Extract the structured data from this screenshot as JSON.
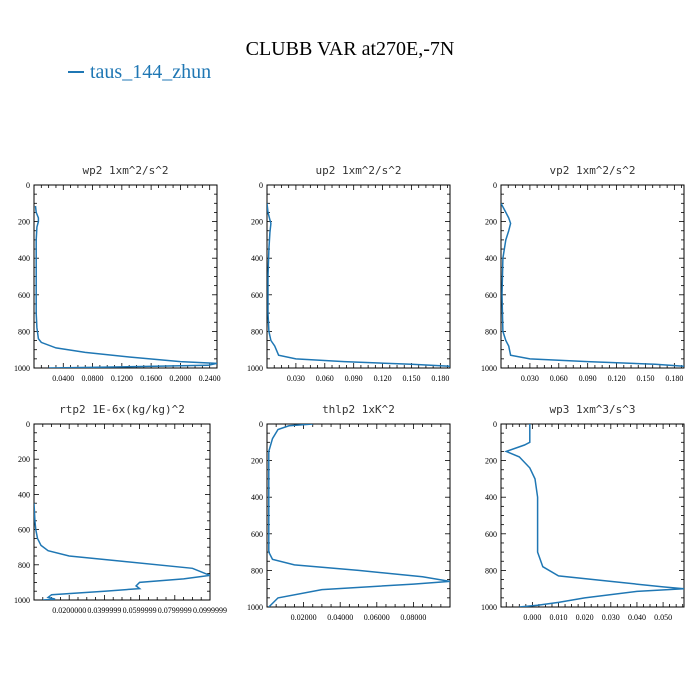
{
  "figure": {
    "title": "CLUBB VAR at270E,-7N",
    "legend": [
      {
        "name": "taus_144_zhun",
        "color": "#1f77b4"
      }
    ]
  },
  "chart_data": [
    {
      "type": "line",
      "title": "wp2   1xm^2/s^2",
      "xlim": [
        0.0,
        0.25
      ],
      "ylim": [
        1000,
        0
      ],
      "xticks": [
        0.04,
        0.08,
        0.12,
        0.16,
        0.2,
        0.24
      ],
      "xtick_labels": [
        "0.0400",
        "0.0800",
        "0.1200",
        "0.1600",
        "0.2000",
        "0.2400"
      ],
      "yticks": [
        0,
        200,
        400,
        600,
        800,
        1000
      ],
      "ytick_labels": [
        "0",
        "200",
        "400",
        "600",
        "800",
        "1000"
      ],
      "series": [
        {
          "name": "taus_144_zhun",
          "color": "#1f77b4",
          "x": [
            0.002,
            0.003,
            0.006,
            0.006,
            0.004,
            0.003,
            0.003,
            0.003,
            0.004,
            0.006,
            0.01,
            0.03,
            0.07,
            0.13,
            0.2,
            0.25,
            0.238,
            0.1,
            0.02
          ],
          "y": [
            115,
            150,
            180,
            200,
            230,
            300,
            500,
            700,
            780,
            840,
            860,
            890,
            915,
            940,
            965,
            975,
            985,
            995,
            1000
          ]
        }
      ]
    },
    {
      "type": "line",
      "title": "up2   1xm^2/s^2",
      "xlim": [
        0.0,
        0.19
      ],
      "ylim": [
        1000,
        0
      ],
      "xticks": [
        0.03,
        0.06,
        0.09,
        0.12,
        0.15,
        0.18
      ],
      "xtick_labels": [
        "0.030",
        "0.060",
        "0.090",
        "0.120",
        "0.150",
        "0.180"
      ],
      "yticks": [
        0,
        200,
        400,
        600,
        800,
        1000
      ],
      "ytick_labels": [
        "0",
        "200",
        "400",
        "600",
        "800",
        "1000"
      ],
      "series": [
        {
          "name": "taus_144_zhun",
          "color": "#1f77b4",
          "x": [
            0.0,
            0.001,
            0.003,
            0.004,
            0.003,
            0.002,
            0.001,
            0.001,
            0.002,
            0.004,
            0.008,
            0.012,
            0.03,
            0.08,
            0.15,
            0.19
          ],
          "y": [
            100,
            150,
            190,
            210,
            260,
            350,
            500,
            700,
            800,
            850,
            880,
            930,
            950,
            965,
            980,
            990
          ]
        }
      ]
    },
    {
      "type": "line",
      "title": "vp2   1xm^2/s^2",
      "xlim": [
        0.0,
        0.19
      ],
      "ylim": [
        1000,
        0
      ],
      "xticks": [
        0.03,
        0.06,
        0.09,
        0.12,
        0.15,
        0.18
      ],
      "xtick_labels": [
        "0.030",
        "0.060",
        "0.090",
        "0.120",
        "0.150",
        "0.180"
      ],
      "yticks": [
        0,
        200,
        400,
        600,
        800,
        1000
      ],
      "ytick_labels": [
        "0",
        "200",
        "400",
        "600",
        "800",
        "1000"
      ],
      "series": [
        {
          "name": "taus_144_zhun",
          "color": "#1f77b4",
          "x": [
            0.0,
            0.004,
            0.008,
            0.01,
            0.008,
            0.005,
            0.002,
            0.001,
            0.002,
            0.005,
            0.008,
            0.01,
            0.03,
            0.09,
            0.16,
            0.19
          ],
          "y": [
            100,
            140,
            180,
            210,
            250,
            300,
            400,
            600,
            800,
            850,
            880,
            930,
            950,
            965,
            980,
            990
          ]
        }
      ]
    },
    {
      "type": "line",
      "title": "rtp2   1E-6x(kg/kg)^2",
      "xlim": [
        0.0,
        0.1
      ],
      "ylim": [
        1000,
        0
      ],
      "xticks": [
        0.02,
        0.04,
        0.06,
        0.08,
        0.1
      ],
      "xtick_labels": [
        "0.0200000",
        "0.0399999",
        "0.0599999",
        "0.0799999",
        "0.0999999"
      ],
      "yticks": [
        0,
        200,
        400,
        600,
        800,
        1000
      ],
      "ytick_labels": [
        "0",
        "200",
        "400",
        "600",
        "800",
        "1000"
      ],
      "series": [
        {
          "name": "taus_144_zhun",
          "color": "#1f77b4",
          "x": [
            0.0,
            0.0005,
            0.001,
            0.002,
            0.004,
            0.008,
            0.02,
            0.05,
            0.09,
            0.1,
            0.085,
            0.06,
            0.058,
            0.06,
            0.04,
            0.01,
            0.008,
            0.012,
            0.005
          ],
          "y": [
            450,
            550,
            600,
            650,
            690,
            720,
            750,
            780,
            820,
            860,
            880,
            900,
            920,
            935,
            950,
            970,
            985,
            995,
            1000
          ]
        }
      ]
    },
    {
      "type": "line",
      "title": "thlp2   1xK^2",
      "xlim": [
        0.0,
        0.1
      ],
      "ylim": [
        1000,
        0
      ],
      "xticks": [
        0.02,
        0.04,
        0.06,
        0.08
      ],
      "xtick_labels": [
        "0.02000",
        "0.04000",
        "0.06000",
        "0.08000"
      ],
      "yticks": [
        0,
        200,
        400,
        600,
        800,
        1000
      ],
      "ytick_labels": [
        "0",
        "200",
        "400",
        "600",
        "800",
        "1000"
      ],
      "series": [
        {
          "name": "taus_144_zhun",
          "color": "#1f77b4",
          "x": [
            0.025,
            0.012,
            0.006,
            0.003,
            0.001,
            0.001,
            0.001,
            0.001,
            0.003,
            0.015,
            0.05,
            0.085,
            0.1,
            0.08,
            0.03,
            0.006,
            0.001
          ],
          "y": [
            0,
            10,
            30,
            80,
            150,
            300,
            500,
            700,
            740,
            770,
            800,
            835,
            860,
            875,
            905,
            950,
            1000
          ]
        }
      ]
    },
    {
      "type": "line",
      "title": "wp3   1xm^3/s^3",
      "xlim": [
        -0.012,
        0.058
      ],
      "ylim": [
        1000,
        0
      ],
      "xticks": [
        0.0,
        0.01,
        0.02,
        0.03,
        0.04,
        0.05
      ],
      "xtick_labels": [
        "0.000",
        "0.010",
        "0.020",
        "0.030",
        "0.040",
        "0.050"
      ],
      "yticks": [
        0,
        200,
        400,
        600,
        800,
        1000
      ],
      "ytick_labels": [
        "0",
        "200",
        "400",
        "600",
        "800",
        "1000"
      ],
      "series": [
        {
          "name": "taus_144_zhun",
          "color": "#1f77b4",
          "x": [
            -0.001,
            -0.001,
            -0.003,
            -0.01,
            -0.005,
            -0.001,
            0.001,
            0.002,
            0.002,
            0.002,
            0.002,
            0.004,
            0.01,
            0.03,
            0.05,
            0.058,
            0.04,
            0.02,
            0.01,
            0.002,
            -0.005
          ],
          "y": [
            0,
            100,
            115,
            150,
            180,
            240,
            300,
            400,
            500,
            600,
            700,
            780,
            830,
            860,
            890,
            900,
            915,
            950,
            975,
            990,
            1000
          ]
        }
      ]
    }
  ]
}
